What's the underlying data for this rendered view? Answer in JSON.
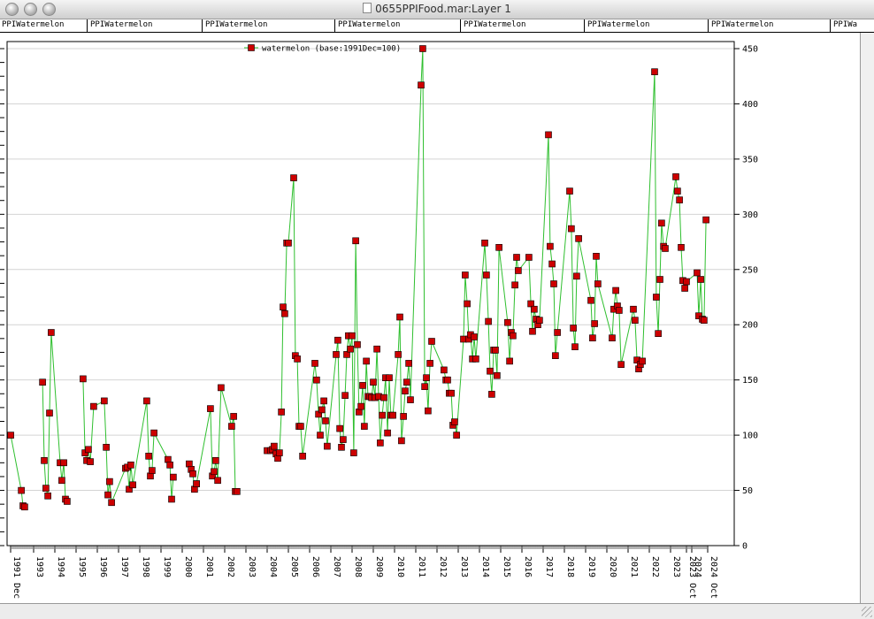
{
  "window": {
    "title": "0655PPIFood.mar:Layer 1"
  },
  "tabs": [
    "PPIWatermelon",
    "PPIWatermelon",
    "PPIWatermelon",
    "PPIWatermelon",
    "PPIWatermelon",
    "PPIWatermelon",
    "PPIWatermelon",
    "PPIWa"
  ],
  "chart_data": {
    "type": "line",
    "legend": "watermelon (base:1991Dec=100)",
    "legend_position": "top-center",
    "ylim": [
      0,
      450
    ],
    "y_ticks": [
      0,
      50,
      100,
      150,
      200,
      250,
      300,
      350,
      400,
      450
    ],
    "xlim": [
      1991.917,
      2024.75
    ],
    "x_tick_labels": [
      {
        "x": 1991.917,
        "label": "1991 Dec"
      },
      {
        "x": 1993,
        "label": "1993"
      },
      {
        "x": 1994,
        "label": "1994"
      },
      {
        "x": 1995,
        "label": "1995"
      },
      {
        "x": 1996,
        "label": "1996"
      },
      {
        "x": 1997,
        "label": "1997"
      },
      {
        "x": 1998,
        "label": "1998"
      },
      {
        "x": 1999,
        "label": "1999"
      },
      {
        "x": 2000,
        "label": "2000"
      },
      {
        "x": 2001,
        "label": "2001"
      },
      {
        "x": 2002,
        "label": "2002"
      },
      {
        "x": 2003,
        "label": "2003"
      },
      {
        "x": 2004,
        "label": "2004"
      },
      {
        "x": 2005,
        "label": "2005"
      },
      {
        "x": 2006,
        "label": "2006"
      },
      {
        "x": 2007,
        "label": "2007"
      },
      {
        "x": 2008,
        "label": "2008"
      },
      {
        "x": 2009,
        "label": "2009"
      },
      {
        "x": 2010,
        "label": "2010"
      },
      {
        "x": 2011,
        "label": "2011"
      },
      {
        "x": 2012,
        "label": "2012"
      },
      {
        "x": 2013,
        "label": "2013"
      },
      {
        "x": 2014,
        "label": "2014"
      },
      {
        "x": 2015,
        "label": "2015"
      },
      {
        "x": 2016,
        "label": "2016"
      },
      {
        "x": 2017,
        "label": "2017"
      },
      {
        "x": 2018,
        "label": "2018"
      },
      {
        "x": 2019,
        "label": "2019"
      },
      {
        "x": 2020,
        "label": "2020"
      },
      {
        "x": 2021,
        "label": "2021"
      },
      {
        "x": 2022,
        "label": "2022"
      },
      {
        "x": 2023,
        "label": "2023"
      },
      {
        "x": 2023.75,
        "label": "2023 Oct"
      },
      {
        "x": 2024,
        "label": "2024"
      },
      {
        "x": 2024.75,
        "label": "2024 Oct"
      }
    ],
    "grid": "horizontal",
    "colors": {
      "line": "#2fbf2f",
      "marker": "#cc0000",
      "marker_edge": "#000000"
    },
    "series": [
      {
        "name": "watermelon (base:1991Dec=100)",
        "points": [
          [
            1991.92,
            100
          ],
          [
            1992.42,
            50
          ],
          [
            1992.5,
            36
          ],
          [
            1992.58,
            35
          ],
          [
            1993.42,
            148
          ],
          [
            1993.5,
            77
          ],
          [
            1993.58,
            52
          ],
          [
            1993.67,
            45
          ],
          [
            1993.75,
            120
          ],
          [
            1993.83,
            193
          ],
          [
            1994.25,
            75
          ],
          [
            1994.33,
            59
          ],
          [
            1994.42,
            75
          ],
          [
            1994.5,
            42
          ],
          [
            1994.58,
            40
          ],
          [
            1995.33,
            151
          ],
          [
            1995.42,
            84
          ],
          [
            1995.5,
            77
          ],
          [
            1995.58,
            87
          ],
          [
            1995.67,
            76
          ],
          [
            1995.83,
            126
          ],
          [
            1996.33,
            131
          ],
          [
            1996.42,
            89
          ],
          [
            1996.5,
            46
          ],
          [
            1996.58,
            58
          ],
          [
            1996.67,
            39
          ],
          [
            1997.33,
            70
          ],
          [
            1997.42,
            71
          ],
          [
            1997.5,
            51
          ],
          [
            1997.58,
            73
          ],
          [
            1997.67,
            55
          ],
          [
            1998.33,
            131
          ],
          [
            1998.42,
            81
          ],
          [
            1998.5,
            63
          ],
          [
            1998.58,
            68
          ],
          [
            1998.67,
            102
          ],
          [
            1999.33,
            78
          ],
          [
            1999.42,
            73
          ],
          [
            1999.5,
            42
          ],
          [
            1999.58,
            62
          ],
          [
            2000.33,
            74
          ],
          [
            2000.42,
            69
          ],
          [
            2000.5,
            65
          ],
          [
            2000.58,
            51
          ],
          [
            2000.67,
            56
          ],
          [
            2000.67,
            56
          ],
          [
            2001.33,
            124
          ],
          [
            2001.42,
            63
          ],
          [
            2001.5,
            67
          ],
          [
            2001.58,
            77
          ],
          [
            2001.67,
            59
          ],
          [
            2001.83,
            143
          ],
          [
            2002.33,
            108
          ],
          [
            2002.42,
            117
          ],
          [
            2002.5,
            49
          ],
          [
            2002.58,
            49
          ],
          [
            2004.0,
            86
          ],
          [
            2004.17,
            86
          ],
          [
            2004.25,
            87
          ],
          [
            2004.33,
            90
          ],
          [
            2004.42,
            83
          ],
          [
            2004.5,
            79
          ],
          [
            2004.58,
            84
          ],
          [
            2004.67,
            121
          ],
          [
            2004.75,
            216
          ],
          [
            2004.83,
            210
          ],
          [
            2004.92,
            274
          ],
          [
            2005.0,
            274
          ],
          [
            2005.25,
            333
          ],
          [
            2005.33,
            172
          ],
          [
            2005.42,
            169
          ],
          [
            2005.5,
            108
          ],
          [
            2005.58,
            108
          ],
          [
            2005.67,
            81
          ],
          [
            2006.25,
            165
          ],
          [
            2006.33,
            150
          ],
          [
            2006.42,
            119
          ],
          [
            2006.5,
            100
          ],
          [
            2006.58,
            123
          ],
          [
            2006.67,
            131
          ],
          [
            2006.75,
            113
          ],
          [
            2006.83,
            90
          ],
          [
            2007.25,
            173
          ],
          [
            2007.33,
            186
          ],
          [
            2007.42,
            106
          ],
          [
            2007.5,
            89
          ],
          [
            2007.58,
            96
          ],
          [
            2007.67,
            136
          ],
          [
            2007.75,
            173
          ],
          [
            2007.83,
            190
          ],
          [
            2007.92,
            178
          ],
          [
            2008.0,
            190
          ],
          [
            2008.08,
            84
          ],
          [
            2008.17,
            276
          ],
          [
            2008.25,
            182
          ],
          [
            2008.33,
            121
          ],
          [
            2008.42,
            126
          ],
          [
            2008.5,
            145
          ],
          [
            2008.58,
            108
          ],
          [
            2008.67,
            167
          ],
          [
            2008.75,
            135
          ],
          [
            2008.83,
            135
          ],
          [
            2008.92,
            134
          ],
          [
            2009.0,
            148
          ],
          [
            2009.08,
            134
          ],
          [
            2009.17,
            178
          ],
          [
            2009.25,
            135
          ],
          [
            2009.33,
            93
          ],
          [
            2009.42,
            118
          ],
          [
            2009.5,
            134
          ],
          [
            2009.58,
            152
          ],
          [
            2009.67,
            102
          ],
          [
            2009.75,
            152
          ],
          [
            2009.83,
            118
          ],
          [
            2009.92,
            118
          ],
          [
            2010.17,
            173
          ],
          [
            2010.25,
            207
          ],
          [
            2010.33,
            95
          ],
          [
            2010.42,
            117
          ],
          [
            2010.5,
            140
          ],
          [
            2010.58,
            148
          ],
          [
            2010.67,
            165
          ],
          [
            2010.75,
            132
          ],
          [
            2011.25,
            417
          ],
          [
            2011.33,
            450
          ],
          [
            2011.42,
            144
          ],
          [
            2011.5,
            152
          ],
          [
            2011.58,
            122
          ],
          [
            2011.67,
            165
          ],
          [
            2011.75,
            185
          ],
          [
            2012.33,
            159
          ],
          [
            2012.42,
            150
          ],
          [
            2012.5,
            150
          ],
          [
            2012.58,
            138
          ],
          [
            2012.67,
            138
          ],
          [
            2012.75,
            109
          ],
          [
            2012.83,
            112
          ],
          [
            2012.92,
            100
          ],
          [
            2013.25,
            187
          ],
          [
            2013.33,
            245
          ],
          [
            2013.42,
            219
          ],
          [
            2013.5,
            187
          ],
          [
            2013.58,
            191
          ],
          [
            2013.67,
            169
          ],
          [
            2013.75,
            189
          ],
          [
            2013.83,
            169
          ],
          [
            2014.25,
            274
          ],
          [
            2014.33,
            245
          ],
          [
            2014.42,
            203
          ],
          [
            2014.5,
            158
          ],
          [
            2014.58,
            137
          ],
          [
            2014.67,
            177
          ],
          [
            2014.75,
            177
          ],
          [
            2014.83,
            154
          ],
          [
            2014.92,
            270
          ],
          [
            2015.33,
            202
          ],
          [
            2015.42,
            167
          ],
          [
            2015.5,
            193
          ],
          [
            2015.58,
            190
          ],
          [
            2015.67,
            236
          ],
          [
            2015.75,
            261
          ],
          [
            2015.83,
            249
          ],
          [
            2016.33,
            261
          ],
          [
            2016.42,
            219
          ],
          [
            2016.5,
            194
          ],
          [
            2016.58,
            214
          ],
          [
            2016.67,
            205
          ],
          [
            2016.75,
            200
          ],
          [
            2016.83,
            204
          ],
          [
            2017.25,
            372
          ],
          [
            2017.33,
            271
          ],
          [
            2017.42,
            255
          ],
          [
            2017.5,
            237
          ],
          [
            2017.58,
            172
          ],
          [
            2017.67,
            193
          ],
          [
            2018.25,
            321
          ],
          [
            2018.33,
            287
          ],
          [
            2018.42,
            197
          ],
          [
            2018.5,
            180
          ],
          [
            2018.58,
            244
          ],
          [
            2018.67,
            278
          ],
          [
            2019.25,
            222
          ],
          [
            2019.33,
            188
          ],
          [
            2019.42,
            201
          ],
          [
            2019.5,
            262
          ],
          [
            2019.58,
            237
          ],
          [
            2020.25,
            188
          ],
          [
            2020.33,
            214
          ],
          [
            2020.42,
            231
          ],
          [
            2020.5,
            217
          ],
          [
            2020.58,
            213
          ],
          [
            2020.67,
            164
          ],
          [
            2021.25,
            214
          ],
          [
            2021.33,
            204
          ],
          [
            2021.42,
            168
          ],
          [
            2021.5,
            160
          ],
          [
            2021.58,
            164
          ],
          [
            2021.67,
            167
          ],
          [
            2022.25,
            429
          ],
          [
            2022.33,
            225
          ],
          [
            2022.42,
            192
          ],
          [
            2022.5,
            241
          ],
          [
            2022.58,
            292
          ],
          [
            2022.67,
            271
          ],
          [
            2022.75,
            269
          ],
          [
            2023.25,
            334
          ],
          [
            2023.33,
            321
          ],
          [
            2023.42,
            313
          ],
          [
            2023.5,
            270
          ],
          [
            2023.58,
            240
          ],
          [
            2023.67,
            233
          ],
          [
            2023.75,
            239
          ],
          [
            2024.25,
            247
          ],
          [
            2024.33,
            208
          ],
          [
            2024.42,
            241
          ],
          [
            2024.5,
            205
          ],
          [
            2024.58,
            204
          ],
          [
            2024.67,
            295
          ]
        ]
      }
    ]
  }
}
